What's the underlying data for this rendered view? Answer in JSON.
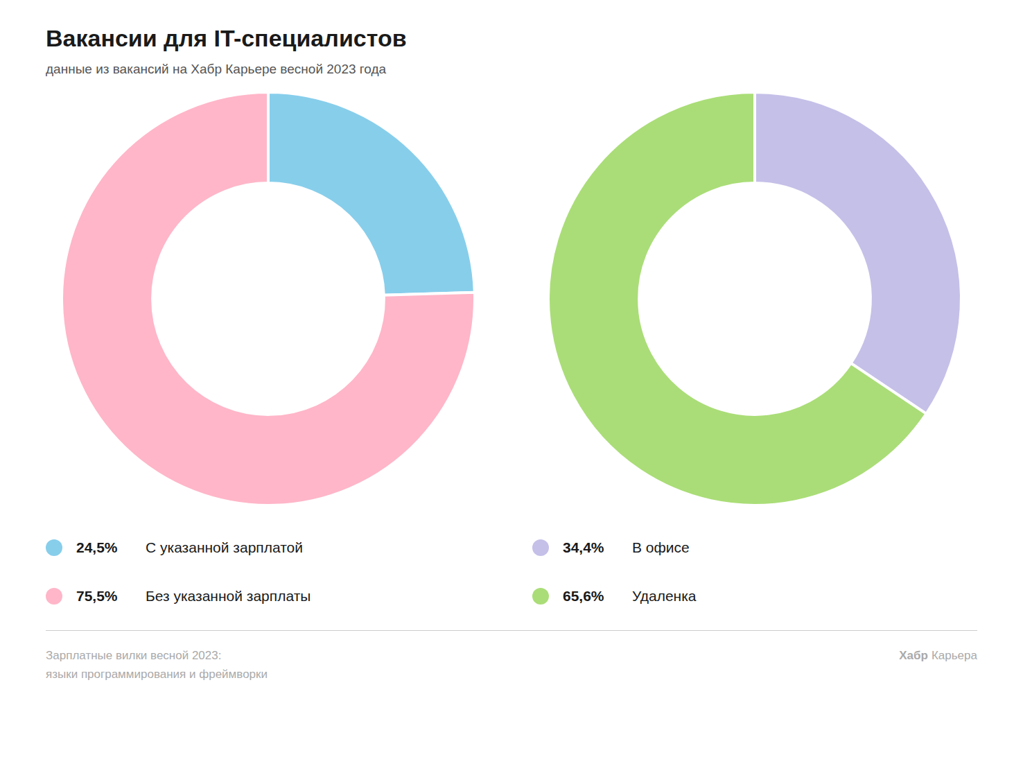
{
  "title": "Вакансии для IT-специалистов",
  "subtitle": "данные из вакансий на Хабр Карьере весной 2023 года",
  "annotations": [
    "Зарплатные вилки весной 2023:",
    "языки программирования и фреймворки",
    "Хабр",
    "Карьера"
  ],
  "chart_data": [
    {
      "type": "doughnut",
      "categories": [
        "С указанной зарплатой",
        "Без указанной зарплаты"
      ],
      "values": [
        24.5,
        75.5
      ],
      "value_labels": [
        "24,5%",
        "75,5%"
      ],
      "colors": [
        "#87CEEB",
        "#FFB6C8"
      ],
      "legend": "bottom"
    },
    {
      "type": "doughnut",
      "categories": [
        "В офисе",
        "Удаленка"
      ],
      "values": [
        34.4,
        65.6
      ],
      "value_labels": [
        "34,4%",
        "65,6%"
      ],
      "colors": [
        "#C5C0E8",
        "#AADD77"
      ],
      "legend": "bottom"
    }
  ]
}
